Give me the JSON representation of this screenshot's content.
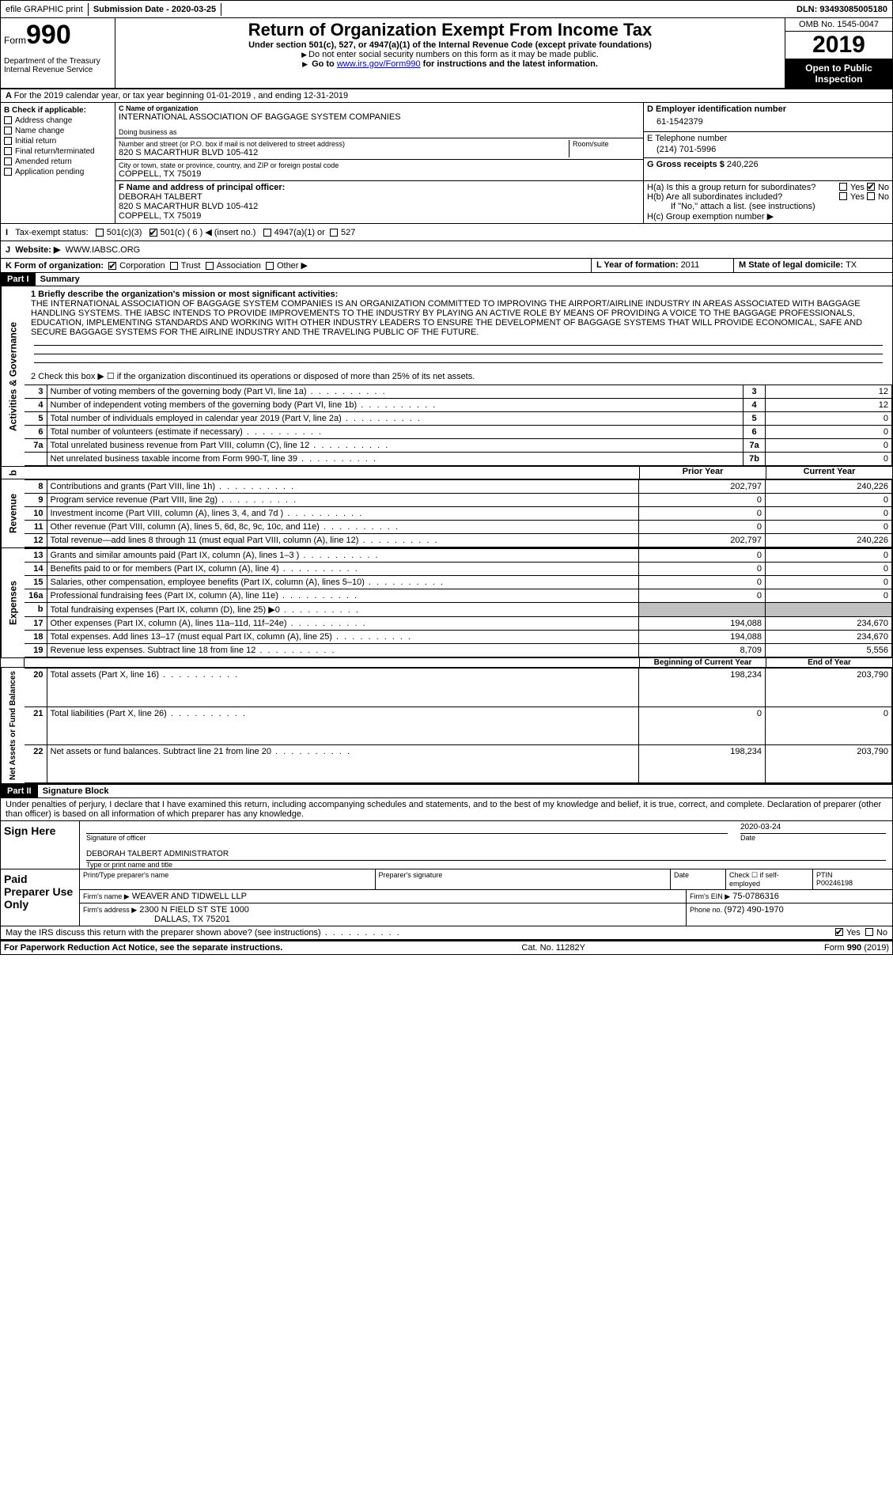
{
  "topbar": {
    "efile": "efile GRAPHIC print",
    "subdate_label": "Submission Date - ",
    "subdate": "2020-03-25",
    "dln_label": "DLN: ",
    "dln": "93493085005180"
  },
  "header": {
    "form_label": "Form",
    "form_no": "990",
    "dept": "Department of the Treasury",
    "irs": "Internal Revenue Service",
    "title": "Return of Organization Exempt From Income Tax",
    "sub1": "Under section 501(c), 527, or 4947(a)(1) of the Internal Revenue Code (except private foundations)",
    "sub2": "Do not enter social security numbers on this form as it may be made public.",
    "sub3_a": "Go to ",
    "sub3_link": "www.irs.gov/Form990",
    "sub3_b": " for instructions and the latest information.",
    "omb": "OMB No. 1545-0047",
    "year": "2019",
    "open": "Open to Public Inspection"
  },
  "rowA": {
    "text": "For the 2019 calendar year, or tax year beginning 01-01-2019   , and ending 12-31-2019"
  },
  "B": {
    "label": "B Check if applicable:",
    "opts": [
      "Address change",
      "Name change",
      "Initial return",
      "Final return/terminated",
      "Amended return",
      "Application pending"
    ]
  },
  "C": {
    "name_label": "C Name of organization",
    "name": "INTERNATIONAL ASSOCIATION OF BAGGAGE SYSTEM COMPANIES",
    "dba_label": "Doing business as",
    "dba": "",
    "street_label": "Number and street (or P.O. box if mail is not delivered to street address)",
    "street": "820 S MACARTHUR BLVD 105-412",
    "room_label": "Room/suite",
    "city_label": "City or town, state or province, country, and ZIP or foreign postal code",
    "city": "COPPELL, TX  75019"
  },
  "D": {
    "label": "D Employer identification number",
    "val": "61-1542379"
  },
  "E": {
    "label": "E Telephone number",
    "val": "(214) 701-5996"
  },
  "G": {
    "label": "G Gross receipts $ ",
    "val": "240,226"
  },
  "F": {
    "label": "F  Name and address of principal officer:",
    "name": "DEBORAH TALBERT",
    "street": "820 S MACARTHUR BLVD 105-412",
    "city": "COPPELL, TX  75019"
  },
  "H": {
    "a": "H(a)  Is this a group return for subordinates?",
    "b": "H(b)  Are all subordinates included?",
    "note": "If \"No,\" attach a list. (see instructions)",
    "c": "H(c)  Group exemption number ▶",
    "yes": "Yes",
    "no": "No"
  },
  "I": {
    "label": "Tax-exempt status:",
    "o1": "501(c)(3)",
    "o2": "501(c) ( 6 ) ◀ (insert no.)",
    "o3": "4947(a)(1) or",
    "o4": "527"
  },
  "J": {
    "label": "Website: ▶",
    "val": "WWW.IABSC.ORG"
  },
  "K": {
    "label": "K Form of organization:",
    "o1": "Corporation",
    "o2": "Trust",
    "o3": "Association",
    "o4": "Other ▶"
  },
  "L": {
    "label": "L Year of formation: ",
    "val": "2011"
  },
  "M": {
    "label": "M State of legal domicile: ",
    "val": "TX"
  },
  "part1": {
    "hdr": "Part I",
    "title": "Summary",
    "l1_label": "1   Briefly describe the organization's mission or most significant activities:",
    "l1": "THE INTERNATIONAL ASSOCIATION OF BAGGAGE SYSTEM COMPANIES IS AN ORGANIZATION COMMITTED TO IMPROVING THE AIRPORT/AIRLINE INDUSTRY IN AREAS ASSOCIATED WITH BAGGAGE HANDLING SYSTEMS. THE IABSC INTENDS TO PROVIDE IMPROVEMENTS TO THE INDUSTRY BY PLAYING AN ACTIVE ROLE BY MEANS OF PROVIDING A VOICE TO THE BAGGAGE PROFESSIONALS, EDUCATION, IMPLEMENTING STANDARDS AND WORKING WITH OTHER INDUSTRY LEADERS TO ENSURE THE DEVELOPMENT OF BAGGAGE SYSTEMS THAT WILL PROVIDE ECONOMICAL, SAFE AND SECURE BAGGAGE SYSTEMS FOR THE AIRLINE INDUSTRY AND THE TRAVELING PUBLIC OF THE FUTURE.",
    "l2": "2   Check this box ▶ ☐ if the organization discontinued its operations or disposed of more than 25% of its net assets.",
    "sec_ag": "Activities & Governance",
    "sec_rev": "Revenue",
    "sec_exp": "Expenses",
    "sec_na": "Net Assets or Fund Balances",
    "col_prior": "Prior Year",
    "col_curr": "Current Year",
    "col_boy": "Beginning of Current Year",
    "col_eoy": "End of Year",
    "rows_ag": [
      {
        "n": "3",
        "d": "Number of voting members of the governing body (Part VI, line 1a)",
        "c": "3",
        "v": "12"
      },
      {
        "n": "4",
        "d": "Number of independent voting members of the governing body (Part VI, line 1b)",
        "c": "4",
        "v": "12"
      },
      {
        "n": "5",
        "d": "Total number of individuals employed in calendar year 2019 (Part V, line 2a)",
        "c": "5",
        "v": "0"
      },
      {
        "n": "6",
        "d": "Total number of volunteers (estimate if necessary)",
        "c": "6",
        "v": "0"
      },
      {
        "n": "7a",
        "d": "Total unrelated business revenue from Part VIII, column (C), line 12",
        "c": "7a",
        "v": "0"
      },
      {
        "n": "",
        "d": "Net unrelated business taxable income from Form 990-T, line 39",
        "c": "7b",
        "v": "0"
      }
    ],
    "rows_rev": [
      {
        "n": "8",
        "d": "Contributions and grants (Part VIII, line 1h)",
        "p": "202,797",
        "c": "240,226"
      },
      {
        "n": "9",
        "d": "Program service revenue (Part VIII, line 2g)",
        "p": "0",
        "c": "0"
      },
      {
        "n": "10",
        "d": "Investment income (Part VIII, column (A), lines 3, 4, and 7d )",
        "p": "0",
        "c": "0"
      },
      {
        "n": "11",
        "d": "Other revenue (Part VIII, column (A), lines 5, 6d, 8c, 9c, 10c, and 11e)",
        "p": "0",
        "c": "0"
      },
      {
        "n": "12",
        "d": "Total revenue—add lines 8 through 11 (must equal Part VIII, column (A), line 12)",
        "p": "202,797",
        "c": "240,226"
      }
    ],
    "rows_exp": [
      {
        "n": "13",
        "d": "Grants and similar amounts paid (Part IX, column (A), lines 1–3 )",
        "p": "0",
        "c": "0"
      },
      {
        "n": "14",
        "d": "Benefits paid to or for members (Part IX, column (A), line 4)",
        "p": "0",
        "c": "0"
      },
      {
        "n": "15",
        "d": "Salaries, other compensation, employee benefits (Part IX, column (A), lines 5–10)",
        "p": "0",
        "c": "0"
      },
      {
        "n": "16a",
        "d": "Professional fundraising fees (Part IX, column (A), line 11e)",
        "p": "0",
        "c": "0"
      },
      {
        "n": "b",
        "d": "Total fundraising expenses (Part IX, column (D), line 25) ▶0",
        "p": "grey",
        "c": "grey"
      },
      {
        "n": "17",
        "d": "Other expenses (Part IX, column (A), lines 11a–11d, 11f–24e)",
        "p": "194,088",
        "c": "234,670"
      },
      {
        "n": "18",
        "d": "Total expenses. Add lines 13–17 (must equal Part IX, column (A), line 25)",
        "p": "194,088",
        "c": "234,670"
      },
      {
        "n": "19",
        "d": "Revenue less expenses. Subtract line 18 from line 12",
        "p": "8,709",
        "c": "5,556"
      }
    ],
    "rows_na": [
      {
        "n": "20",
        "d": "Total assets (Part X, line 16)",
        "p": "198,234",
        "c": "203,790"
      },
      {
        "n": "21",
        "d": "Total liabilities (Part X, line 26)",
        "p": "0",
        "c": "0"
      },
      {
        "n": "22",
        "d": "Net assets or fund balances. Subtract line 21 from line 20",
        "p": "198,234",
        "c": "203,790"
      }
    ]
  },
  "part2": {
    "hdr": "Part II",
    "title": "Signature Block",
    "decl": "Under penalties of perjury, I declare that I have examined this return, including accompanying schedules and statements, and to the best of my knowledge and belief, it is true, correct, and complete. Declaration of preparer (other than officer) is based on all information of which preparer has any knowledge.",
    "sign_here": "Sign Here",
    "sig_off": "Signature of officer",
    "date": "Date",
    "date_val": "2020-03-24",
    "name": "DEBORAH TALBERT  ADMINISTRATOR",
    "name_lbl": "Type or print name and title",
    "paid": "Paid Preparer Use Only",
    "pname_lbl": "Print/Type preparer's name",
    "psig_lbl": "Preparer's signature",
    "pdate_lbl": "Date",
    "pself": "Check ☐ if self-employed",
    "ptin_lbl": "PTIN",
    "ptin": "P00246198",
    "firm_lbl": "Firm's name    ▶",
    "firm": "WEAVER AND TIDWELL LLP",
    "ein_lbl": "Firm's EIN ▶",
    "ein": "75-0786316",
    "faddr_lbl": "Firm's address ▶",
    "faddr1": "2300 N FIELD ST STE 1000",
    "faddr2": "DALLAS, TX  75201",
    "phone_lbl": "Phone no. ",
    "phone": "(972) 490-1970",
    "may": "May the IRS discuss this return with the preparer shown above? (see instructions)",
    "yes": "Yes",
    "no": "No"
  },
  "footer": {
    "pra": "For Paperwork Reduction Act Notice, see the separate instructions.",
    "cat": "Cat. No. 11282Y",
    "form": "Form 990 (2019)"
  },
  "b_row": "b"
}
